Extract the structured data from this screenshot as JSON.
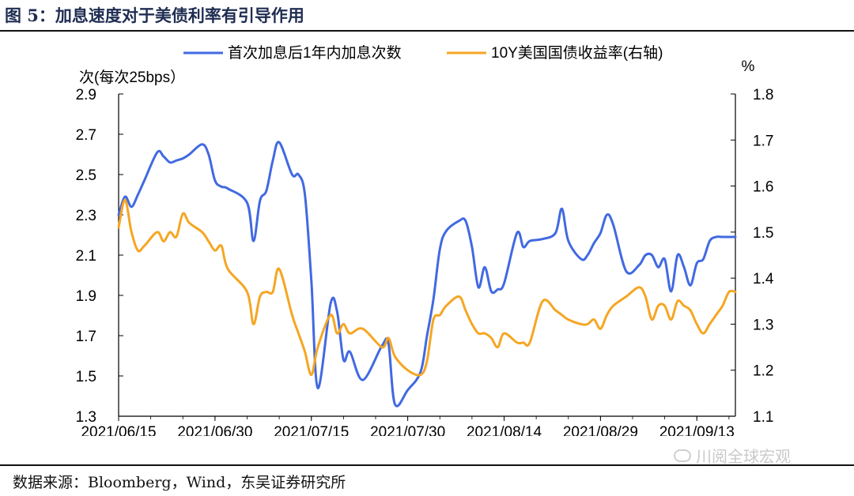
{
  "figure_title": "图 5：加息速度对于美债利率有引导作用",
  "source_note": "数据来源：Bloomberg，Wind，东吴证券研究所",
  "watermark_text": "川阅全球宏观",
  "chart_data": {
    "type": "line",
    "left_unit": "次(每次25bps）",
    "right_unit": "%",
    "left_ticks": [
      "2.9",
      "2.7",
      "2.5",
      "2.3",
      "2.1",
      "1.9",
      "1.7",
      "1.5",
      "1.3"
    ],
    "right_ticks": [
      "1.8",
      "1.7",
      "1.6",
      "1.5",
      "1.4",
      "1.3",
      "1.2",
      "1.1"
    ],
    "x_ticks": [
      "2021/06/15",
      "2021/06/30",
      "2021/07/15",
      "2021/07/30",
      "2021/08/14",
      "2021/08/29",
      "2021/09/13"
    ],
    "ylim_left": [
      1.3,
      2.9
    ],
    "ylim_right": [
      1.1,
      1.8
    ],
    "xlim": [
      "2021-06-15",
      "2021-09-19"
    ],
    "legend_position": "top",
    "grid": false,
    "series": [
      {
        "name": "首次加息后1年内加息次数",
        "axis": "left",
        "color": "#4169e1",
        "x": [
          "2021-06-15",
          "2021-06-16",
          "2021-06-17",
          "2021-06-18",
          "2021-06-19",
          "2021-06-21",
          "2021-06-22",
          "2021-06-23",
          "2021-06-24",
          "2021-06-25",
          "2021-06-26",
          "2021-06-28",
          "2021-06-29",
          "2021-06-30",
          "2021-07-01",
          "2021-07-02",
          "2021-07-05",
          "2021-07-06",
          "2021-07-07",
          "2021-07-08",
          "2021-07-09",
          "2021-07-10",
          "2021-07-12",
          "2021-07-13",
          "2021-07-14",
          "2021-07-15",
          "2021-07-16",
          "2021-07-18",
          "2021-07-19",
          "2021-07-20",
          "2021-07-21",
          "2021-07-23",
          "2021-07-26",
          "2021-07-27",
          "2021-07-28",
          "2021-07-30",
          "2021-08-01",
          "2021-08-02",
          "2021-08-03",
          "2021-08-04",
          "2021-08-05",
          "2021-08-07",
          "2021-08-08",
          "2021-08-09",
          "2021-08-10",
          "2021-08-11",
          "2021-08-12",
          "2021-08-13",
          "2021-08-14",
          "2021-08-16",
          "2021-08-17",
          "2021-08-18",
          "2021-08-20",
          "2021-08-22",
          "2021-08-23",
          "2021-08-24",
          "2021-08-26",
          "2021-08-27",
          "2021-08-28",
          "2021-08-29",
          "2021-08-30",
          "2021-08-31",
          "2021-09-02",
          "2021-09-04",
          "2021-09-05",
          "2021-09-06",
          "2021-09-07",
          "2021-09-08",
          "2021-09-09",
          "2021-09-10",
          "2021-09-11",
          "2021-09-12",
          "2021-09-13",
          "2021-09-14",
          "2021-09-15",
          "2021-09-16",
          "2021-09-17",
          "2021-09-18",
          "2021-09-19"
        ],
        "y": [
          2.3,
          2.39,
          2.34,
          2.4,
          2.47,
          2.61,
          2.59,
          2.56,
          2.57,
          2.58,
          2.6,
          2.65,
          2.6,
          2.47,
          2.44,
          2.43,
          2.36,
          2.17,
          2.37,
          2.42,
          2.57,
          2.66,
          2.5,
          2.5,
          2.4,
          1.97,
          1.44,
          1.86,
          1.82,
          1.58,
          1.62,
          1.48,
          1.65,
          1.66,
          1.36,
          1.43,
          1.52,
          1.7,
          1.88,
          2.13,
          2.22,
          2.27,
          2.27,
          2.14,
          1.94,
          2.04,
          1.92,
          1.93,
          1.96,
          2.21,
          2.14,
          2.17,
          2.18,
          2.21,
          2.33,
          2.17,
          2.08,
          2.1,
          2.16,
          2.21,
          2.3,
          2.25,
          2.02,
          2.05,
          2.1,
          2.1,
          2.04,
          2.08,
          1.92,
          2.1,
          2.04,
          1.95,
          2.06,
          2.08,
          2.17,
          2.19,
          2.19,
          2.19,
          2.19
        ]
      },
      {
        "name": "10Y美国国债收益率(右轴)",
        "axis": "right",
        "color": "#f5a623",
        "x": [
          "2021-06-15",
          "2021-06-16",
          "2021-06-17",
          "2021-06-18",
          "2021-06-19",
          "2021-06-21",
          "2021-06-22",
          "2021-06-23",
          "2021-06-24",
          "2021-06-25",
          "2021-06-26",
          "2021-06-28",
          "2021-06-29",
          "2021-06-30",
          "2021-07-01",
          "2021-07-02",
          "2021-07-05",
          "2021-07-06",
          "2021-07-07",
          "2021-07-08",
          "2021-07-09",
          "2021-07-10",
          "2021-07-12",
          "2021-07-13",
          "2021-07-14",
          "2021-07-15",
          "2021-07-16",
          "2021-07-18",
          "2021-07-19",
          "2021-07-20",
          "2021-07-21",
          "2021-07-23",
          "2021-07-26",
          "2021-07-27",
          "2021-07-28",
          "2021-07-30",
          "2021-08-01",
          "2021-08-02",
          "2021-08-03",
          "2021-08-04",
          "2021-08-05",
          "2021-08-07",
          "2021-08-08",
          "2021-08-09",
          "2021-08-10",
          "2021-08-11",
          "2021-08-12",
          "2021-08-13",
          "2021-08-14",
          "2021-08-16",
          "2021-08-17",
          "2021-08-18",
          "2021-08-20",
          "2021-08-22",
          "2021-08-23",
          "2021-08-24",
          "2021-08-26",
          "2021-08-27",
          "2021-08-28",
          "2021-08-29",
          "2021-08-30",
          "2021-08-31",
          "2021-09-02",
          "2021-09-04",
          "2021-09-05",
          "2021-09-06",
          "2021-09-07",
          "2021-09-08",
          "2021-09-09",
          "2021-09-10",
          "2021-09-11",
          "2021-09-12",
          "2021-09-13",
          "2021-09-14",
          "2021-09-15",
          "2021-09-16",
          "2021-09-17",
          "2021-09-18",
          "2021-09-19"
        ],
        "y": [
          1.51,
          1.57,
          1.5,
          1.46,
          1.47,
          1.5,
          1.48,
          1.5,
          1.49,
          1.54,
          1.52,
          1.5,
          1.48,
          1.46,
          1.47,
          1.42,
          1.37,
          1.3,
          1.36,
          1.37,
          1.37,
          1.42,
          1.32,
          1.28,
          1.24,
          1.19,
          1.25,
          1.32,
          1.28,
          1.3,
          1.28,
          1.29,
          1.25,
          1.27,
          1.23,
          1.2,
          1.19,
          1.22,
          1.31,
          1.32,
          1.34,
          1.36,
          1.33,
          1.3,
          1.28,
          1.28,
          1.27,
          1.25,
          1.28,
          1.26,
          1.26,
          1.26,
          1.35,
          1.33,
          1.32,
          1.31,
          1.3,
          1.3,
          1.31,
          1.29,
          1.32,
          1.34,
          1.36,
          1.38,
          1.36,
          1.31,
          1.34,
          1.34,
          1.31,
          1.35,
          1.34,
          1.33,
          1.3,
          1.28,
          1.3,
          1.32,
          1.34,
          1.37,
          1.37
        ]
      }
    ]
  }
}
